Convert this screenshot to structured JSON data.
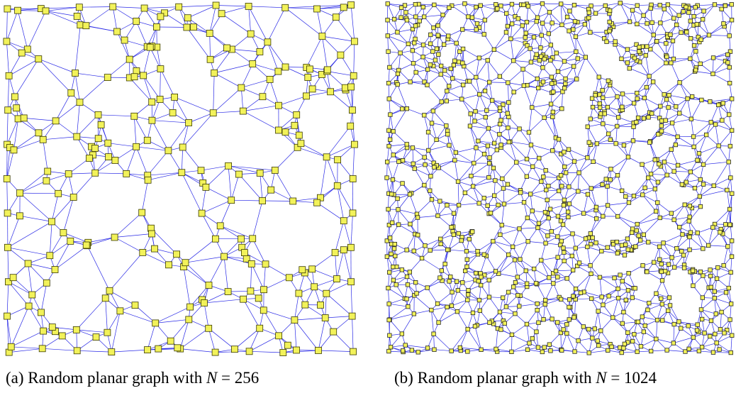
{
  "figure": {
    "panels": [
      {
        "id": "a",
        "caption_label": "(a) Random planar graph with ",
        "caption_var": "N",
        "caption_eq": " = 256",
        "node_count": 256,
        "colors": {
          "edge": "#2a2ae6",
          "node_fill": "#f2f25a",
          "node_stroke": "#3a3a00"
        }
      },
      {
        "id": "b",
        "caption_label": "(b) Random planar graph with ",
        "caption_var": "N",
        "caption_eq": " = 1024",
        "node_count": 1024,
        "colors": {
          "edge": "#2a2ae6",
          "node_fill": "#f2f25a",
          "node_stroke": "#222222"
        }
      }
    ]
  }
}
